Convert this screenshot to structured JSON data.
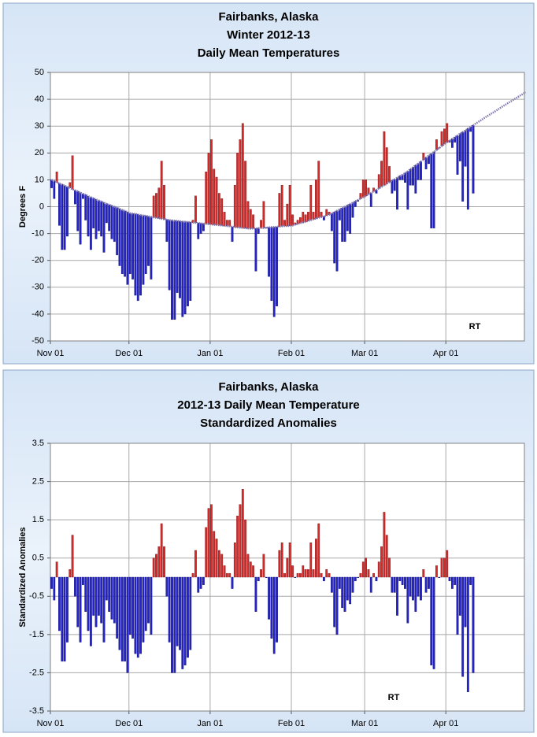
{
  "chart_data": [
    {
      "type": "floating-bar",
      "title": [
        "Fairbanks, Alaska",
        "Winter 2012-13",
        "Daily Mean Temperatures"
      ],
      "y_label": "Degrees F",
      "annotation": "RT",
      "x": [
        0,
        1,
        2,
        3,
        4,
        5,
        6,
        7,
        8,
        9,
        10,
        11,
        12,
        13,
        14,
        15,
        16,
        17,
        18,
        19,
        20,
        21,
        22,
        23,
        24,
        25,
        26,
        27,
        28,
        29,
        30,
        31,
        32,
        33,
        34,
        35,
        36,
        37,
        38,
        39,
        40,
        41,
        42,
        43,
        44,
        45,
        46,
        47,
        48,
        49,
        50,
        51,
        52,
        53,
        54,
        55,
        56,
        57,
        58,
        59,
        60,
        61,
        62,
        63,
        64,
        65,
        66,
        67,
        68,
        69,
        70,
        71,
        72,
        73,
        74,
        75,
        76,
        77,
        78,
        79,
        80,
        81,
        82,
        83,
        84,
        85,
        86,
        87,
        88,
        89,
        90,
        91,
        92,
        93,
        94,
        95,
        96,
        97,
        98,
        99,
        100,
        101,
        102,
        103,
        104,
        105,
        106,
        107,
        108,
        109,
        110,
        111,
        112,
        113,
        114,
        115,
        116,
        117,
        118,
        119,
        120,
        121,
        122,
        123,
        124,
        125,
        126,
        127,
        128,
        129,
        130,
        131,
        132,
        133,
        134,
        135,
        136,
        137,
        138,
        139,
        140,
        141,
        142,
        143,
        144,
        145,
        146,
        147,
        148,
        149,
        150,
        151,
        152,
        153,
        154,
        155,
        156,
        157,
        158,
        159,
        160,
        161,
        162,
        163,
        164,
        165,
        166,
        167,
        168,
        169,
        170,
        171,
        172,
        173,
        174,
        175,
        176,
        177,
        178,
        179,
        180,
        181
      ],
      "values": [
        7,
        3,
        13,
        -7,
        -16,
        -16,
        -11,
        9,
        19,
        1,
        -9,
        -14,
        3,
        -5,
        -11,
        -16,
        -8,
        -12,
        -9,
        -11,
        -17,
        -6,
        -9,
        -12,
        -13,
        -18,
        -22,
        -25,
        -26,
        -29,
        -25,
        -27,
        -33,
        -35,
        -33,
        -29,
        -25,
        -22,
        -27,
        4,
        5,
        7,
        17,
        8,
        -13,
        -31,
        -42,
        -42,
        -32,
        -34,
        -41,
        -40,
        -37,
        -35,
        -5,
        4,
        -12,
        -10,
        -9,
        13,
        20,
        25,
        14,
        11,
        5,
        3,
        -2,
        -5,
        -5,
        -13,
        8,
        20,
        25,
        31,
        17,
        2,
        -1,
        -3,
        -24,
        -10,
        -5,
        2,
        -8,
        -26,
        -35,
        -41,
        -37,
        5,
        8,
        -5,
        1,
        8,
        -3,
        -6,
        -5,
        -4,
        -2,
        -3,
        -2,
        8,
        -2,
        10,
        17,
        -2,
        -5,
        -1,
        -2,
        -9,
        -21,
        -24,
        -5,
        -13,
        -13,
        -9,
        -10,
        -4,
        0,
        2,
        5,
        10,
        10,
        7,
        0,
        7,
        5,
        12,
        17,
        28,
        22,
        15,
        5,
        6,
        -1,
        10,
        10,
        9,
        -1,
        8,
        8,
        5,
        10,
        10,
        20,
        14,
        16,
        -8,
        -8,
        25,
        22,
        28,
        29,
        31,
        24,
        22,
        24,
        12,
        17,
        2,
        15,
        -1,
        28,
        5,
        null,
        null,
        null,
        null,
        null,
        null,
        null,
        null,
        null,
        null,
        null,
        null,
        null,
        null,
        null,
        null,
        null,
        null,
        null,
        null
      ],
      "baseline": [
        10,
        9.6,
        9.1,
        8.7,
        8.3,
        7.8,
        7.4,
        7.0,
        6.5,
        6.1,
        5.7,
        5.2,
        4.8,
        4.4,
        3.9,
        3.5,
        3.1,
        2.7,
        2.3,
        1.9,
        1.5,
        1.1,
        0.7,
        0.4,
        0,
        -0.4,
        -0.8,
        -1.2,
        -1.6,
        -2.0,
        -2.4,
        -2.6,
        -2.7,
        -2.9,
        -3.1,
        -3.3,
        -3.4,
        -3.6,
        -3.8,
        -4.0,
        -4.1,
        -4.3,
        -4.5,
        -4.7,
        -4.8,
        -5.0,
        -5.1,
        -5.2,
        -5.3,
        -5.4,
        -5.5,
        -5.6,
        -5.7,
        -5.8,
        -5.9,
        -6.0,
        -6.1,
        -6.2,
        -6.3,
        -6.4,
        -6.5,
        -6.6,
        -6.7,
        -6.8,
        -6.9,
        -7.0,
        -7.1,
        -7.2,
        -7.3,
        -7.5,
        -7.6,
        -7.7,
        -7.8,
        -7.9,
        -8.0,
        -8.1,
        -8.2,
        -8.1,
        -8.1,
        -8.0,
        -7.9,
        -7.9,
        -7.8,
        -7.7,
        -7.6,
        -7.6,
        -7.5,
        -7.4,
        -7.3,
        -7.2,
        -7.2,
        -7.1,
        -7.0,
        -6.7,
        -6.4,
        -6.1,
        -5.9,
        -5.6,
        -5.3,
        -5.0,
        -4.7,
        -4.4,
        -4.1,
        -3.9,
        -3.6,
        -3.3,
        -3.0,
        -2.5,
        -2.0,
        -1.5,
        -1.0,
        -0.5,
        0,
        0.5,
        1.0,
        1.5,
        2.0,
        2.5,
        3.0,
        3.5,
        4.0,
        4.6,
        5.1,
        5.7,
        6.3,
        6.8,
        7.4,
        8.0,
        8.5,
        9.1,
        9.7,
        10.2,
        10.8,
        11.4,
        11.9,
        12.5,
        13.2,
        13.9,
        14.7,
        15.4,
        16.1,
        16.8,
        17.5,
        18.3,
        19.0,
        19.7,
        20.4,
        21.1,
        21.8,
        22.6,
        23.3,
        24.0,
        24.6,
        25.3,
        25.9,
        26.5,
        27.2,
        27.8,
        28.4,
        29.1,
        29.7,
        30.3,
        31.0,
        31.6,
        32.2,
        32.9,
        33.5,
        34.1,
        34.7,
        35.3,
        35.9,
        36.6,
        37.2,
        37.8,
        38.4,
        39.0,
        39.6,
        40.2,
        40.8,
        41.4,
        42.0,
        42.6
      ],
      "above_color": "#d42b2b",
      "below_color": "#2424c8",
      "baseline_color": "#8078b0",
      "xlim": [
        0,
        181
      ],
      "xticks": [
        {
          "value": 0,
          "label": "Nov 01"
        },
        {
          "value": 30,
          "label": "Dec 01"
        },
        {
          "value": 61,
          "label": "Jan 01"
        },
        {
          "value": 92,
          "label": "Feb 01"
        },
        {
          "value": 120,
          "label": "Mar 01"
        },
        {
          "value": 151,
          "label": "Apr 01"
        }
      ],
      "ylim": [
        -50,
        50
      ],
      "yticks": [
        -50,
        -40,
        -30,
        -20,
        -10,
        0,
        10,
        20,
        30,
        40,
        50
      ],
      "grid": true
    },
    {
      "type": "bar",
      "title": [
        "Fairbanks, Alaska",
        "2012-13 Daily Mean Temperature",
        "Standardized Anomalies"
      ],
      "y_label": "Standardized Anomalies",
      "annotation": "RT",
      "x": [
        0,
        1,
        2,
        3,
        4,
        5,
        6,
        7,
        8,
        9,
        10,
        11,
        12,
        13,
        14,
        15,
        16,
        17,
        18,
        19,
        20,
        21,
        22,
        23,
        24,
        25,
        26,
        27,
        28,
        29,
        30,
        31,
        32,
        33,
        34,
        35,
        36,
        37,
        38,
        39,
        40,
        41,
        42,
        43,
        44,
        45,
        46,
        47,
        48,
        49,
        50,
        51,
        52,
        53,
        54,
        55,
        56,
        57,
        58,
        59,
        60,
        61,
        62,
        63,
        64,
        65,
        66,
        67,
        68,
        69,
        70,
        71,
        72,
        73,
        74,
        75,
        76,
        77,
        78,
        79,
        80,
        81,
        82,
        83,
        84,
        85,
        86,
        87,
        88,
        89,
        90,
        91,
        92,
        93,
        94,
        95,
        96,
        97,
        98,
        99,
        100,
        101,
        102,
        103,
        104,
        105,
        106,
        107,
        108,
        109,
        110,
        111,
        112,
        113,
        114,
        115,
        116,
        117,
        118,
        119,
        120,
        121,
        122,
        123,
        124,
        125,
        126,
        127,
        128,
        129,
        130,
        131,
        132,
        133,
        134,
        135,
        136,
        137,
        138,
        139,
        140,
        141,
        142,
        143,
        144,
        145,
        146,
        147,
        148,
        149,
        150,
        151,
        152,
        153,
        154,
        155,
        156,
        157,
        158,
        159,
        160,
        161
      ],
      "values": [
        -0.3,
        -0.6,
        0.4,
        -1.4,
        -2.2,
        -2.2,
        -1.7,
        0.2,
        1.1,
        -0.5,
        -1.3,
        -1.7,
        -0.2,
        -0.9,
        -1.4,
        -1.8,
        -1.0,
        -1.3,
        -1.0,
        -1.2,
        -1.7,
        -0.6,
        -0.9,
        -1.1,
        -1.2,
        -1.6,
        -1.9,
        -2.2,
        -2.2,
        -2.5,
        -1.5,
        -1.6,
        -2.0,
        -2.1,
        -2.0,
        -1.7,
        -1.4,
        -1.2,
        -1.5,
        0.5,
        0.6,
        0.8,
        1.4,
        0.8,
        -0.5,
        -1.7,
        -2.5,
        -2.5,
        -1.8,
        -1.9,
        -2.4,
        -2.3,
        -2.1,
        -1.9,
        0.1,
        0.7,
        -0.4,
        -0.3,
        -0.2,
        1.3,
        1.8,
        1.9,
        1.2,
        1.0,
        0.7,
        0.6,
        0.3,
        0.1,
        0.1,
        -0.3,
        0.9,
        1.6,
        1.9,
        2.3,
        1.5,
        0.6,
        0.4,
        0.3,
        -0.9,
        -0.1,
        0.2,
        0.6,
        0.0,
        -1.1,
        -1.6,
        -2.0,
        -1.7,
        0.7,
        0.9,
        0.1,
        0.5,
        0.9,
        0.3,
        0.0,
        0.1,
        0.1,
        0.3,
        0.2,
        0.2,
        0.9,
        0.2,
        1.0,
        1.4,
        0.1,
        -0.1,
        0.2,
        0.1,
        -0.4,
        -1.3,
        -1.5,
        -0.3,
        -0.8,
        -0.9,
        -0.6,
        -0.7,
        -0.4,
        -0.1,
        0.0,
        0.1,
        0.4,
        0.5,
        0.2,
        -0.4,
        0.1,
        -0.1,
        0.4,
        0.8,
        1.7,
        1.1,
        0.5,
        -0.4,
        -0.4,
        -1.0,
        -0.1,
        -0.2,
        -0.3,
        -1.2,
        -0.5,
        -0.6,
        -0.9,
        -0.5,
        -0.6,
        0.2,
        -0.4,
        -0.3,
        -2.3,
        -2.4,
        0.3,
        0.0,
        0.5,
        0.5,
        0.7,
        -0.1,
        -0.3,
        -0.2,
        -1.5,
        -1.0,
        -2.6,
        -1.3,
        -3.0,
        -0.2,
        -2.5
      ],
      "above_color": "#d42b2b",
      "below_color": "#2424c8",
      "xlim": [
        0,
        181
      ],
      "xticks": [
        {
          "value": 0,
          "label": "Nov 01"
        },
        {
          "value": 30,
          "label": "Dec 01"
        },
        {
          "value": 61,
          "label": "Jan 01"
        },
        {
          "value": 92,
          "label": "Feb 01"
        },
        {
          "value": 120,
          "label": "Mar 01"
        },
        {
          "value": 151,
          "label": "Apr 01"
        }
      ],
      "ylim": [
        -3.5,
        3.5
      ],
      "yticks": [
        -3.5,
        -2.5,
        -1.5,
        -0.5,
        0.5,
        1.5,
        2.5,
        3.5
      ],
      "grid": true
    }
  ]
}
